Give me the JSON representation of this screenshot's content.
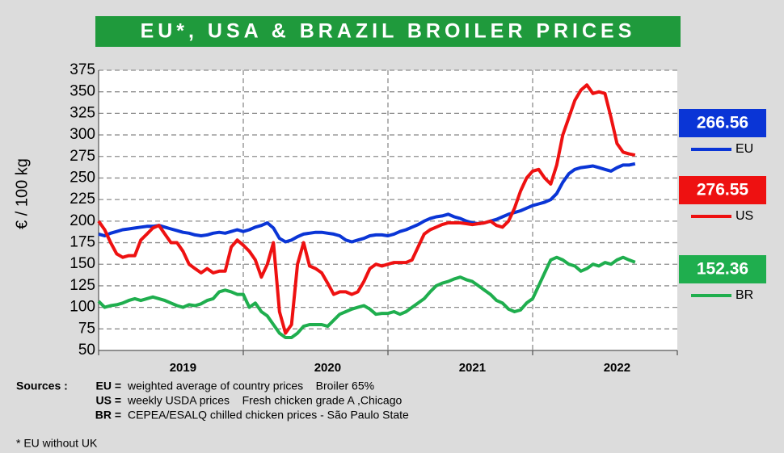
{
  "chart_data": {
    "type": "line",
    "title": "EU*, USA & BRAZIL BROILER PRICES",
    "y_label": "€ / 100 kg",
    "ylim": [
      50,
      375
    ],
    "yticks": [
      50,
      75,
      100,
      125,
      150,
      175,
      200,
      225,
      250,
      275,
      300,
      325,
      350,
      375
    ],
    "grid": true,
    "categories": [
      null,
      null,
      null,
      null,
      null,
      null,
      null,
      null,
      null,
      null,
      null,
      null,
      null,
      null,
      "2019",
      null,
      null,
      null,
      null,
      null,
      null,
      null,
      null,
      null,
      null,
      null,
      null,
      null,
      null,
      null,
      null,
      null,
      null,
      null,
      null,
      null,
      null,
      null,
      "2020",
      null,
      null,
      null,
      null,
      null,
      null,
      null,
      null,
      null,
      null,
      null,
      null,
      null,
      null,
      null,
      null,
      null,
      null,
      null,
      null,
      null,
      null,
      null,
      "2021",
      null,
      null,
      null,
      null,
      null,
      null,
      null,
      null,
      null,
      null,
      null,
      null,
      null,
      null,
      null,
      null,
      null,
      null,
      null,
      null,
      null,
      null,
      null,
      "2022",
      null,
      null,
      null
    ],
    "series": [
      {
        "name": "EU",
        "color": "#0a35d6",
        "values": [
          185,
          183,
          186,
          188,
          190,
          191,
          192,
          193,
          194,
          194,
          195,
          193,
          191,
          189,
          187,
          186,
          184,
          183,
          184,
          186,
          187,
          186,
          188,
          190,
          188,
          190,
          193,
          195,
          198,
          192,
          180,
          176,
          178,
          182,
          185,
          186,
          187,
          187,
          186,
          185,
          183,
          178,
          176,
          178,
          180,
          183,
          184,
          184,
          183,
          185,
          188,
          190,
          193,
          196,
          200,
          203,
          205,
          206,
          208,
          205,
          203,
          200,
          198,
          197,
          198,
          200,
          202,
          205,
          208,
          210,
          212,
          215,
          218,
          220,
          222,
          225,
          232,
          245,
          255,
          260,
          262,
          263,
          264,
          262,
          260,
          258,
          262,
          265,
          265,
          266.56
        ]
      },
      {
        "name": "US",
        "color": "#ee1111",
        "values": [
          200,
          190,
          175,
          162,
          158,
          160,
          160,
          178,
          185,
          192,
          195,
          185,
          175,
          175,
          165,
          150,
          145,
          140,
          145,
          140,
          142,
          142,
          170,
          178,
          172,
          165,
          155,
          135,
          150,
          175,
          95,
          70,
          80,
          150,
          175,
          148,
          145,
          140,
          128,
          115,
          118,
          118,
          115,
          118,
          130,
          145,
          150,
          148,
          150,
          152,
          152,
          152,
          155,
          170,
          185,
          190,
          193,
          196,
          198,
          198,
          198,
          197,
          196,
          197,
          198,
          200,
          195,
          193,
          200,
          215,
          235,
          250,
          258,
          260,
          250,
          243,
          265,
          300,
          320,
          340,
          352,
          358,
          348,
          350,
          348,
          320,
          290,
          280,
          278,
          276.55
        ]
      },
      {
        "name": "BR",
        "color": "#1fae4e",
        "values": [
          107,
          100,
          102,
          103,
          105,
          108,
          110,
          108,
          110,
          112,
          110,
          108,
          105,
          102,
          100,
          103,
          102,
          104,
          108,
          110,
          118,
          120,
          118,
          115,
          115,
          100,
          105,
          95,
          90,
          80,
          70,
          65,
          65,
          70,
          78,
          80,
          80,
          80,
          78,
          85,
          92,
          95,
          98,
          100,
          102,
          98,
          92,
          93,
          93,
          95,
          92,
          95,
          100,
          105,
          110,
          118,
          125,
          128,
          130,
          133,
          135,
          132,
          130,
          125,
          120,
          115,
          108,
          105,
          98,
          95,
          97,
          105,
          110,
          125,
          140,
          155,
          158,
          155,
          150,
          148,
          142,
          145,
          150,
          148,
          152,
          150,
          155,
          158,
          155,
          152.36
        ]
      }
    ],
    "sources_label": "Sources :",
    "sources": [
      {
        "key": "EU =",
        "text": "weighted average of country prices    Broiler 65%"
      },
      {
        "key": "US =",
        "text": "weekly USDA prices    Fresh chicken grade A ,Chicago"
      },
      {
        "key": "BR =",
        "text": "CEPEA/ESALQ chilled chicken prices - São Paulo State"
      }
    ],
    "footnote": "* EU without UK"
  }
}
